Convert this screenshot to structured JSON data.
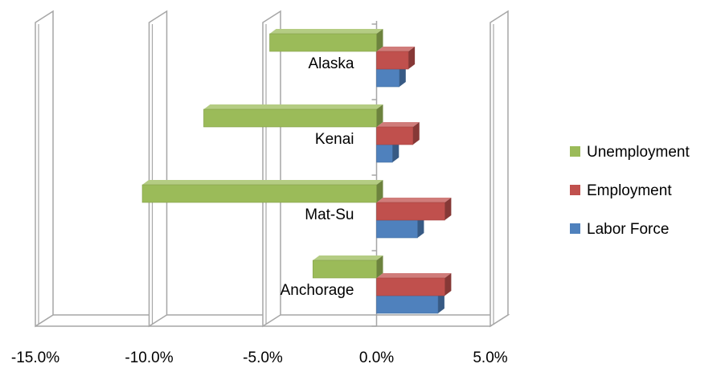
{
  "chart_data": {
    "type": "bar",
    "orientation": "horizontal",
    "style": "3d-clustered",
    "categories": [
      "Anchorage",
      "Mat-Su",
      "Kenai",
      "Alaska"
    ],
    "series": [
      {
        "name": "Labor Force",
        "color": "#4F81BD",
        "values": [
          2.7,
          1.8,
          0.7,
          1.0
        ]
      },
      {
        "name": "Employment",
        "color": "#C0504D",
        "values": [
          3.0,
          3.0,
          1.6,
          1.4
        ]
      },
      {
        "name": "Unemployment",
        "color": "#9BBB59",
        "values": [
          -2.8,
          -10.3,
          -7.6,
          -4.7
        ]
      }
    ],
    "x_ticks": [
      "-15.0%",
      "-10.0%",
      "-5.0%",
      "0.0%",
      "5.0%"
    ],
    "xlim": [
      -15,
      5
    ],
    "x_unit": "%",
    "legend": [
      "Unemployment",
      "Employment",
      "Labor Force"
    ],
    "legend_position": "right",
    "grid": "vertical",
    "title": "",
    "xlabel": "",
    "ylabel": ""
  }
}
